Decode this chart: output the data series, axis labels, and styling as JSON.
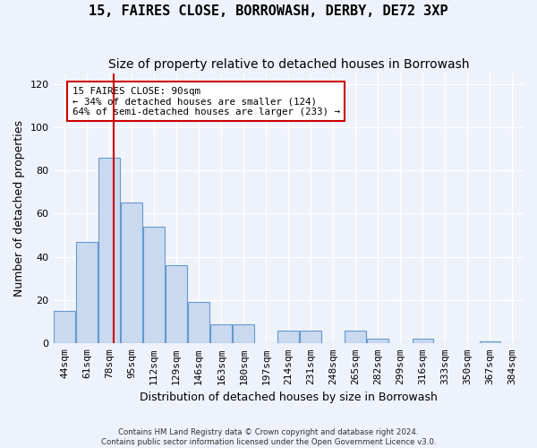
{
  "title": "15, FAIRES CLOSE, BORROWASH, DERBY, DE72 3XP",
  "subtitle": "Size of property relative to detached houses in Borrowash",
  "xlabel": "Distribution of detached houses by size in Borrowash",
  "ylabel": "Number of detached properties",
  "bin_labels": [
    "44sqm",
    "61sqm",
    "78sqm",
    "95sqm",
    "112sqm",
    "129sqm",
    "146sqm",
    "163sqm",
    "180sqm",
    "197sqm",
    "214sqm",
    "231sqm",
    "248sqm",
    "265sqm",
    "282sqm",
    "299sqm",
    "316sqm",
    "333sqm",
    "350sqm",
    "367sqm",
    "384sqm"
  ],
  "bar_heights": [
    15,
    47,
    86,
    65,
    54,
    36,
    19,
    9,
    9,
    0,
    6,
    6,
    0,
    6,
    2,
    0,
    2,
    0,
    0,
    1,
    0
  ],
  "bar_color": "#c9d9f0",
  "bar_edge_color": "#6699cc",
  "ylim": [
    0,
    125
  ],
  "yticks": [
    0,
    20,
    40,
    60,
    80,
    100,
    120
  ],
  "annotation_title": "15 FAIRES CLOSE: 90sqm",
  "annotation_line1": "← 34% of detached houses are smaller (124)",
  "annotation_line2": "64% of semi-detached houses are larger (233) →",
  "annotation_box_color": "#ffffff",
  "annotation_box_edge": "#cc0000",
  "footer1": "Contains HM Land Registry data © Crown copyright and database right 2024.",
  "footer2": "Contains public sector information licensed under the Open Government Licence v3.0.",
  "background_color": "#eef2fb",
  "grid_color": "#ffffff",
  "title_fontsize": 11,
  "subtitle_fontsize": 10,
  "axis_fontsize": 9,
  "tick_fontsize": 8
}
